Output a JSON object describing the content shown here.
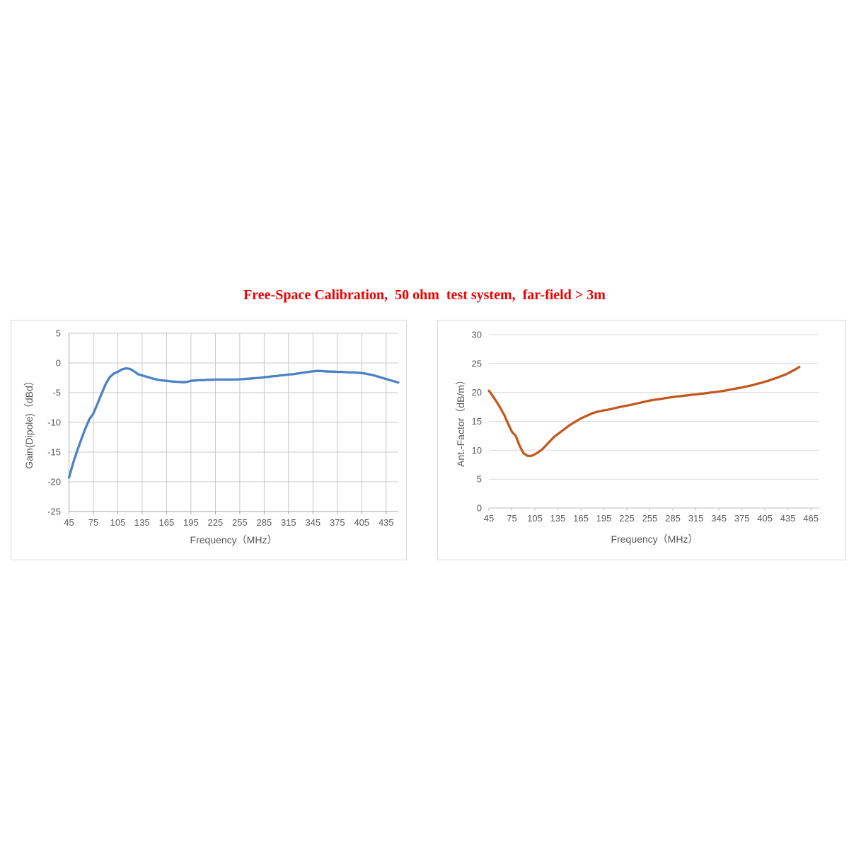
{
  "header": {
    "title": "Free-Space Calibration,  50 ohm  test system,  far-field > 3m",
    "color": "#ee0000"
  },
  "chart_data": [
    {
      "type": "line",
      "title": "",
      "xlabel": "Frequency（MHz）",
      "ylabel": "Gain(Dipole)（dBd）",
      "xlim": [
        45,
        450
      ],
      "ylim": [
        -25,
        5
      ],
      "x_ticks": [
        45,
        75,
        105,
        135,
        165,
        195,
        225,
        255,
        285,
        315,
        345,
        375,
        405,
        435
      ],
      "y_ticks": [
        5,
        0,
        -5,
        -10,
        -15,
        -20,
        -25
      ],
      "grid": "both",
      "legend": "none",
      "line_color": "#4a82c4",
      "grid_color": "#c8c8c8",
      "axis_color": "#a6a6a6",
      "text_color": "#595959",
      "series": [
        {
          "name": "gain-dipole",
          "x": [
            45,
            50,
            55,
            60,
            65,
            70,
            75,
            80,
            85,
            90,
            95,
            100,
            105,
            110,
            115,
            120,
            125,
            130,
            135,
            140,
            145,
            150,
            155,
            160,
            165,
            170,
            175,
            180,
            185,
            190,
            195,
            200,
            205,
            210,
            215,
            220,
            225,
            230,
            235,
            240,
            245,
            250,
            255,
            260,
            265,
            270,
            275,
            280,
            285,
            290,
            295,
            300,
            305,
            310,
            315,
            320,
            325,
            330,
            335,
            340,
            345,
            350,
            355,
            360,
            365,
            370,
            375,
            380,
            385,
            390,
            395,
            400,
            405,
            410,
            415,
            420,
            425,
            430,
            435,
            440,
            445,
            450
          ],
          "y": [
            -19.3,
            -16.9,
            -14.8,
            -12.9,
            -11.1,
            -9.5,
            -8.5,
            -6.9,
            -5.2,
            -3.6,
            -2.4,
            -1.8,
            -1.5,
            -1.1,
            -0.9,
            -1.0,
            -1.4,
            -1.9,
            -2.1,
            -2.3,
            -2.5,
            -2.7,
            -2.85,
            -2.95,
            -3.0,
            -3.1,
            -3.15,
            -3.2,
            -3.25,
            -3.2,
            -3.0,
            -2.95,
            -2.9,
            -2.9,
            -2.85,
            -2.85,
            -2.8,
            -2.8,
            -2.8,
            -2.8,
            -2.8,
            -2.78,
            -2.75,
            -2.7,
            -2.65,
            -2.6,
            -2.55,
            -2.5,
            -2.4,
            -2.35,
            -2.25,
            -2.2,
            -2.1,
            -2.05,
            -1.95,
            -1.9,
            -1.8,
            -1.7,
            -1.6,
            -1.5,
            -1.4,
            -1.35,
            -1.35,
            -1.4,
            -1.45,
            -1.45,
            -1.5,
            -1.5,
            -1.55,
            -1.6,
            -1.6,
            -1.65,
            -1.7,
            -1.8,
            -1.95,
            -2.1,
            -2.3,
            -2.5,
            -2.7,
            -2.9,
            -3.1,
            -3.3
          ]
        }
      ]
    },
    {
      "type": "line",
      "title": "",
      "xlabel": "Frequency（MHz）",
      "ylabel": "Ant.-Factor（dB/m）",
      "xlim": [
        45,
        476
      ],
      "ylim": [
        0,
        30
      ],
      "x_ticks": [
        45,
        75,
        105,
        135,
        165,
        195,
        225,
        255,
        285,
        315,
        345,
        375,
        405,
        435,
        465
      ],
      "y_ticks": [
        30,
        25,
        20,
        15,
        10,
        5,
        0
      ],
      "grid": "horizontal",
      "legend": "none",
      "line_color": "#c4571d",
      "grid_color": "#d9d9d9",
      "axis_color": "#bfbfbf",
      "text_color": "#595959",
      "series": [
        {
          "name": "antenna-factor",
          "x": [
            45,
            50,
            55,
            60,
            65,
            70,
            75,
            80,
            85,
            90,
            95,
            100,
            105,
            110,
            115,
            120,
            125,
            130,
            135,
            140,
            145,
            150,
            155,
            160,
            165,
            170,
            175,
            180,
            185,
            190,
            195,
            200,
            205,
            210,
            215,
            220,
            225,
            230,
            235,
            240,
            245,
            250,
            255,
            260,
            265,
            270,
            275,
            280,
            285,
            290,
            295,
            300,
            305,
            310,
            315,
            320,
            325,
            330,
            335,
            340,
            345,
            350,
            355,
            360,
            365,
            370,
            375,
            380,
            385,
            390,
            395,
            400,
            405,
            410,
            415,
            420,
            425,
            430,
            435,
            440,
            445,
            450
          ],
          "y": [
            20.3,
            19.4,
            18.4,
            17.3,
            16.1,
            14.6,
            13.2,
            12.5,
            10.8,
            9.5,
            9.05,
            9.0,
            9.3,
            9.7,
            10.2,
            10.9,
            11.6,
            12.3,
            12.8,
            13.3,
            13.8,
            14.3,
            14.7,
            15.1,
            15.5,
            15.8,
            16.1,
            16.4,
            16.6,
            16.75,
            16.9,
            17.0,
            17.15,
            17.3,
            17.45,
            17.6,
            17.7,
            17.85,
            18.0,
            18.15,
            18.3,
            18.45,
            18.6,
            18.7,
            18.8,
            18.9,
            19.0,
            19.1,
            19.2,
            19.3,
            19.35,
            19.45,
            19.5,
            19.6,
            19.65,
            19.75,
            19.8,
            19.9,
            20.0,
            20.05,
            20.15,
            20.25,
            20.35,
            20.5,
            20.6,
            20.75,
            20.85,
            21.0,
            21.15,
            21.3,
            21.5,
            21.65,
            21.85,
            22.05,
            22.3,
            22.5,
            22.75,
            23.0,
            23.3,
            23.65,
            24.0,
            24.4
          ]
        }
      ]
    }
  ]
}
